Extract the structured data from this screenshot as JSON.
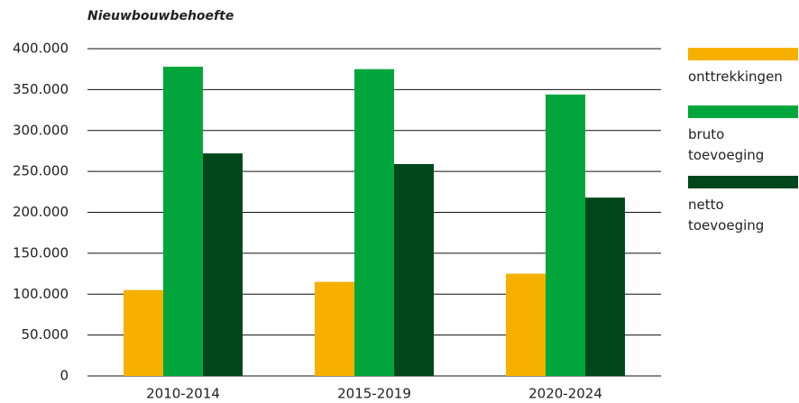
{
  "chart_data": {
    "type": "bar",
    "title": "Nieuwbouwbehoefte",
    "categories": [
      "2010-2014",
      "2015-2019",
      "2020-2024"
    ],
    "series": [
      {
        "name": "onttrekkingen",
        "color": "#f7b000",
        "values": [
          105000,
          115000,
          125000
        ]
      },
      {
        "name": "bruto toevoeging",
        "color": "#00a63c",
        "values": [
          378000,
          375000,
          344000
        ]
      },
      {
        "name": "netto toevoeging",
        "color": "#00471b",
        "values": [
          272000,
          259000,
          218000
        ]
      }
    ],
    "ylim": [
      0,
      400000
    ],
    "yticks": [
      0,
      {
        "value": 50000,
        "label": "50.000"
      },
      {
        "value": 100000,
        "label": "100.000"
      },
      {
        "value": 150000,
        "label": "150.000"
      },
      {
        "value": 200000,
        "label": "200.000"
      },
      {
        "value": 250000,
        "label": "250.000"
      },
      {
        "value": 300000,
        "label": "300.000"
      },
      {
        "value": 350000,
        "label": "350.000"
      },
      {
        "value": 400000,
        "label": "400.000"
      }
    ],
    "grid": true,
    "legend": "right"
  }
}
